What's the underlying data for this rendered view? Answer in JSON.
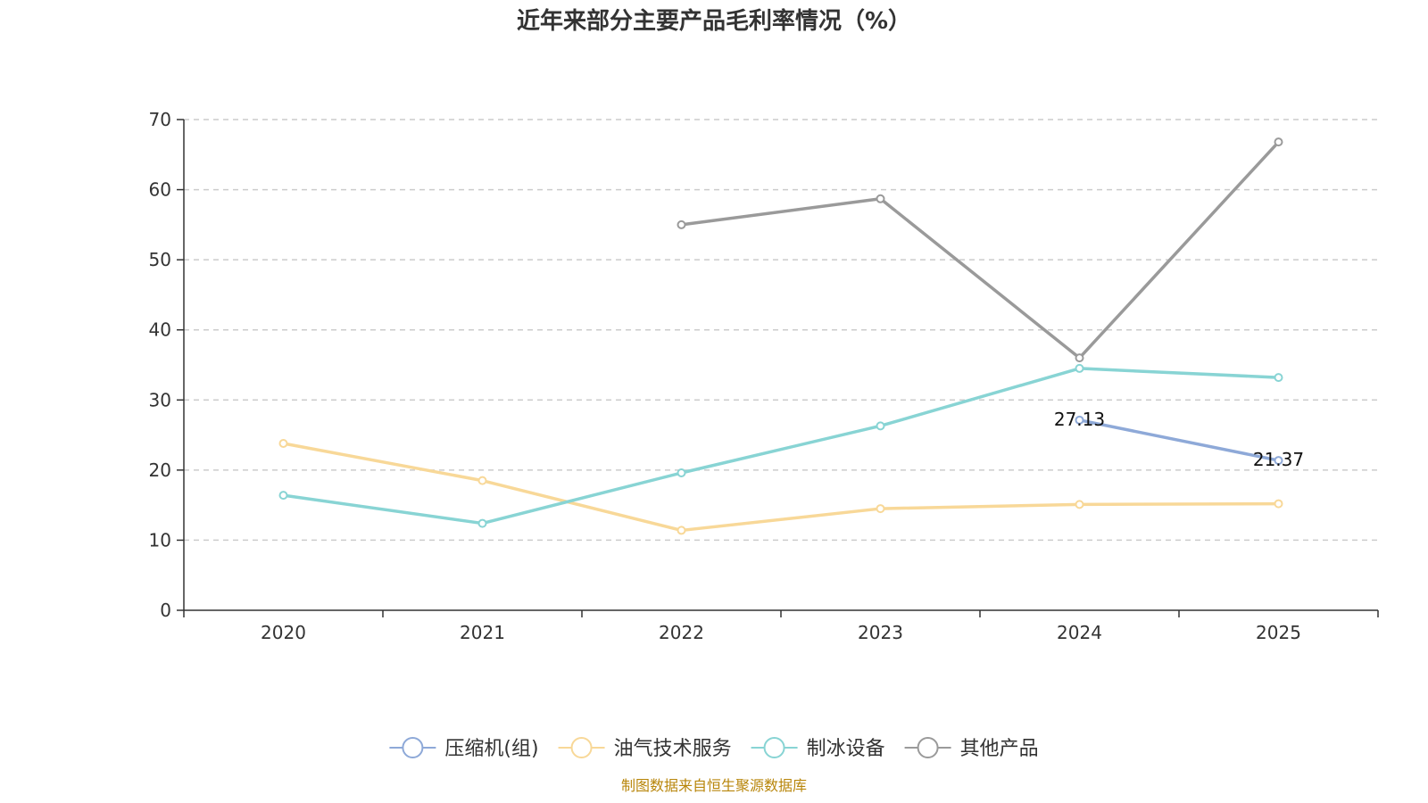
{
  "chart_data": {
    "type": "line",
    "title": "近年来部分主要产品毛利率情况（%）",
    "categories": [
      "2020",
      "2021",
      "2022",
      "2023",
      "2024",
      "2025"
    ],
    "ylim": [
      0,
      70
    ],
    "yticks": [
      "0",
      "10",
      "20",
      "30",
      "40",
      "50",
      "60",
      "70"
    ],
    "grid": true,
    "legend_position": "bottom",
    "series": [
      {
        "name": "压缩机(组)",
        "color": "#8ea9d8",
        "values": [
          null,
          null,
          null,
          null,
          27.13,
          21.37
        ],
        "labels": [
          "",
          "",
          "",
          "",
          "27.13",
          "21.37"
        ]
      },
      {
        "name": "油气技术服务",
        "color": "#f8d898",
        "values": [
          23.8,
          18.5,
          11.4,
          14.5,
          15.1,
          15.2
        ]
      },
      {
        "name": "制冰设备",
        "color": "#88d4d4",
        "values": [
          16.4,
          12.4,
          19.6,
          26.3,
          34.5,
          33.2
        ]
      },
      {
        "name": "其他产品",
        "color": "#9a9a9a",
        "values": [
          null,
          null,
          55.0,
          58.7,
          36.0,
          66.8
        ]
      }
    ],
    "source": "制图数据来自恒生聚源数据库",
    "source_color": "#b8860b"
  }
}
